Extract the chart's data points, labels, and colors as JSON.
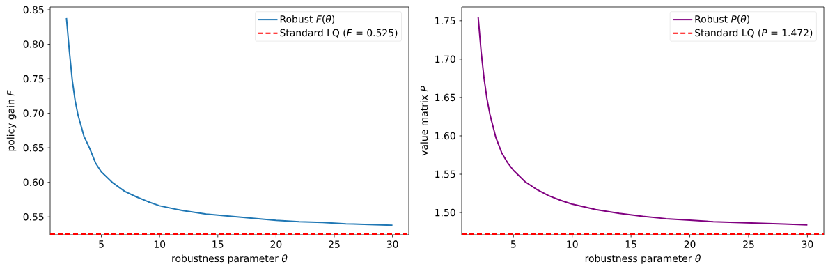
{
  "chart_data": [
    {
      "type": "line",
      "xlabel": "robustness parameter *θ*",
      "ylabel": "policy gain *F*",
      "xlim": [
        0.6,
        31.4
      ],
      "ylim": [
        0.524,
        0.854
      ],
      "xticks": [
        5,
        10,
        15,
        20,
        25,
        30
      ],
      "yticks": [
        {
          "value": 0.55,
          "label": "0.55"
        },
        {
          "value": 0.6,
          "label": "0.60"
        },
        {
          "value": 0.65,
          "label": "0.65"
        },
        {
          "value": 0.7,
          "label": "0.70"
        },
        {
          "value": 0.75,
          "label": "0.75"
        },
        {
          "value": 0.8,
          "label": "0.80"
        },
        {
          "value": 0.85,
          "label": "0.85"
        }
      ],
      "x": [
        2,
        2.25,
        2.5,
        2.75,
        3,
        3.5,
        4,
        4.5,
        5,
        6,
        7,
        8,
        9,
        10,
        12,
        14,
        16,
        18,
        20,
        22,
        24,
        26,
        28,
        30
      ],
      "series": [
        {
          "name": "Robust *F*(*θ*)",
          "color": "#1f77b4",
          "values": [
            0.838,
            0.79,
            0.748,
            0.718,
            0.697,
            0.667,
            0.649,
            0.628,
            0.615,
            0.599,
            0.587,
            0.579,
            0.572,
            0.566,
            0.559,
            0.554,
            0.551,
            0.548,
            0.545,
            0.543,
            0.542,
            0.54,
            0.539,
            0.538
          ]
        }
      ],
      "ref_lines": [
        {
          "axis": "y",
          "value": 0.525,
          "label": "Standard LQ (*F* = 0.525)",
          "color": "#ff0000",
          "line_style": "dashed"
        }
      ],
      "legend": "top right",
      "line_style": "solid"
    },
    {
      "type": "line",
      "xlabel": "robustness parameter *θ*",
      "ylabel": "value matrix *P*",
      "xlim": [
        0.6,
        31.4
      ],
      "ylim": [
        1.471,
        1.768
      ],
      "xticks": [
        5,
        10,
        15,
        20,
        25,
        30
      ],
      "yticks": [
        {
          "value": 1.5,
          "label": "1.50"
        },
        {
          "value": 1.55,
          "label": "1.55"
        },
        {
          "value": 1.6,
          "label": "1.60"
        },
        {
          "value": 1.65,
          "label": "1.65"
        },
        {
          "value": 1.7,
          "label": "1.70"
        },
        {
          "value": 1.75,
          "label": "1.75"
        }
      ],
      "x": [
        2,
        2.25,
        2.5,
        2.75,
        3,
        3.5,
        4,
        4.5,
        5,
        6,
        7,
        8,
        9,
        10,
        12,
        14,
        16,
        18,
        20,
        22,
        24,
        26,
        28,
        30
      ],
      "series": [
        {
          "name": "Robust *P*(*θ*)",
          "color": "#800080",
          "values": [
            1.755,
            1.71,
            1.675,
            1.648,
            1.628,
            1.598,
            1.578,
            1.565,
            1.555,
            1.54,
            1.53,
            1.522,
            1.516,
            1.511,
            1.504,
            1.499,
            1.495,
            1.492,
            1.49,
            1.488,
            1.487,
            1.486,
            1.485,
            1.484
          ]
        }
      ],
      "ref_lines": [
        {
          "axis": "y",
          "value": 1.472,
          "label": "Standard LQ (*P* = 1.472)",
          "color": "#ff0000",
          "line_style": "dashed"
        }
      ],
      "legend": "top right",
      "line_style": "solid"
    }
  ]
}
